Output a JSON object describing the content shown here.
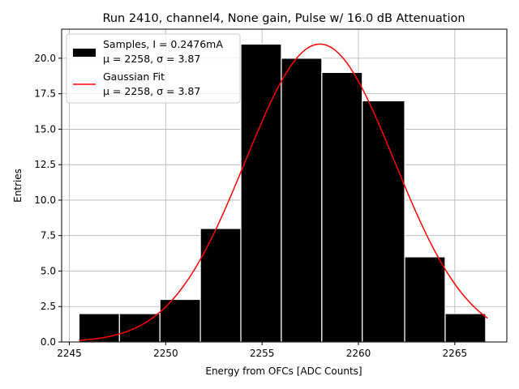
{
  "chart_data": {
    "type": "bar",
    "title": "Run 2410, channel4, None gain, Pulse w/ 16.0 dB Attenuation",
    "xlabel": "Energy from OFCs [ADC Counts]",
    "ylabel": "Entries",
    "xlim": [
      2244.6,
      2267.7
    ],
    "ylim": [
      0,
      22.05
    ],
    "xticks": [
      "2245",
      "2250",
      "2255",
      "2260",
      "2265"
    ],
    "xtick_values": [
      2245,
      2250,
      2255,
      2260,
      2265
    ],
    "yticks": [
      "0.0",
      "2.5",
      "5.0",
      "7.5",
      "10.0",
      "12.5",
      "15.0",
      "17.5",
      "20.0"
    ],
    "ytick_values": [
      0,
      2.5,
      5,
      7.5,
      10,
      12.5,
      15,
      17.5,
      20
    ],
    "grid": true,
    "legend_position": "top-left",
    "series": [
      {
        "name": "Samples, I = 0.2476mA",
        "name_line2": "μ = 2258, σ = 3.87",
        "kind": "histogram",
        "color": "#000000",
        "bin_edges": [
          2245.5,
          2247.6,
          2249.7,
          2251.8,
          2253.9,
          2256.0,
          2258.1,
          2260.2,
          2262.4,
          2264.5,
          2266.6
        ],
        "counts": [
          2,
          2,
          3,
          8,
          21,
          20,
          19,
          17,
          6,
          2
        ]
      },
      {
        "name": "Gaussian Fit",
        "name_line2": "μ = 2258, σ = 3.87",
        "kind": "line",
        "color": "#ff0000",
        "mu": 2258.0,
        "sigma": 3.87,
        "amplitude": 21.0,
        "x_range": [
          2245.5,
          2266.7
        ]
      }
    ]
  }
}
